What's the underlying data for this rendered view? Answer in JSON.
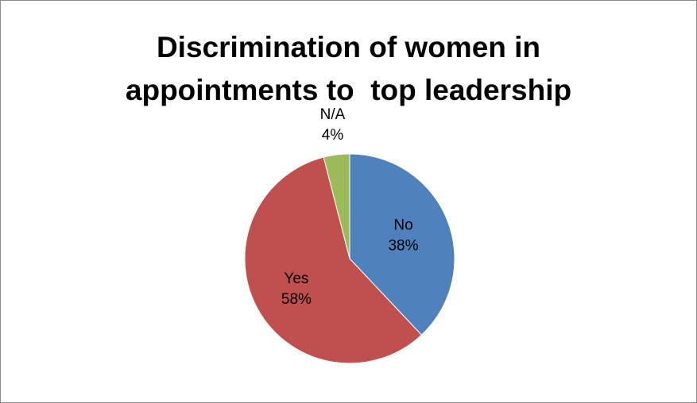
{
  "chart_data": {
    "type": "pie",
    "title_lines": [
      "Discrimination of women in",
      "appointments to  top leadership"
    ],
    "slices": [
      {
        "label": "No",
        "value": 38,
        "display": "38%",
        "color": "#4f81bd"
      },
      {
        "label": "Yes",
        "value": 58,
        "display": "58%",
        "color": "#c0504d"
      },
      {
        "label": "N/A",
        "value": 4,
        "display": "4%",
        "color": "#9bbb59"
      }
    ],
    "legend": "none",
    "start_angle_deg": 0,
    "direction": "clockwise"
  }
}
